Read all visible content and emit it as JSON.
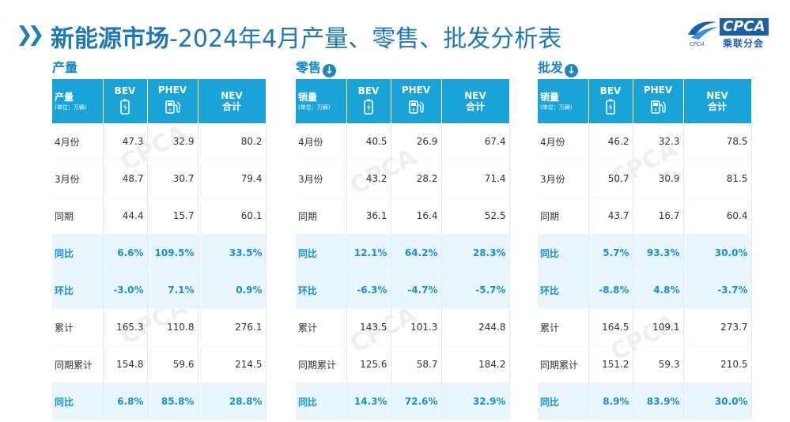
{
  "title": {
    "bold": "新能源市场",
    "rest": "-2024年4月产量、零售、批发分析表"
  },
  "logo": {
    "en": "CPCA",
    "cn": "乘联分会",
    "small": "CPCA"
  },
  "header_cols": {
    "bev": "BEV",
    "phev": "PHEV",
    "nev_line1": "NEV",
    "nev_line2": "合计"
  },
  "unit_note": "(单位：万辆)",
  "panels": [
    {
      "name": "产量",
      "col_label": "产量",
      "rows": [
        {
          "label": "4月份",
          "bev": "47.3",
          "phev": "32.9",
          "nev": "80.2"
        },
        {
          "label": "3月份",
          "bev": "48.7",
          "phev": "30.7",
          "nev": "79.4"
        },
        {
          "label": "同期",
          "bev": "44.4",
          "phev": "15.7",
          "nev": "60.1"
        },
        {
          "label": "同比",
          "bev": "6.6%",
          "phev": "109.5%",
          "nev": "33.5%"
        },
        {
          "label": "环比",
          "bev": "-3.0%",
          "phev": "7.1%",
          "nev": "0.9%"
        },
        {
          "label": "累计",
          "bev": "165.3",
          "phev": "110.8",
          "nev": "276.1"
        },
        {
          "label": "同期累计",
          "bev": "154.8",
          "phev": "59.6",
          "nev": "214.5"
        },
        {
          "label": "同比",
          "bev": "6.8%",
          "phev": "85.8%",
          "nev": "28.8%"
        }
      ]
    },
    {
      "name": "零售",
      "col_label": "销量",
      "rows": [
        {
          "label": "4月份",
          "bev": "40.5",
          "phev": "26.9",
          "nev": "67.4"
        },
        {
          "label": "3月份",
          "bev": "43.2",
          "phev": "28.2",
          "nev": "71.4"
        },
        {
          "label": "同期",
          "bev": "36.1",
          "phev": "16.4",
          "nev": "52.5"
        },
        {
          "label": "同比",
          "bev": "12.1%",
          "phev": "64.2%",
          "nev": "28.3%"
        },
        {
          "label": "环比",
          "bev": "-6.3%",
          "phev": "-4.7%",
          "nev": "-5.7%"
        },
        {
          "label": "累计",
          "bev": "143.5",
          "phev": "101.3",
          "nev": "244.8"
        },
        {
          "label": "同期累计",
          "bev": "125.6",
          "phev": "58.7",
          "nev": "184.2"
        },
        {
          "label": "同比",
          "bev": "14.3%",
          "phev": "72.6%",
          "nev": "32.9%"
        }
      ]
    },
    {
      "name": "批发",
      "col_label": "销量",
      "rows": [
        {
          "label": "4月份",
          "bev": "46.2",
          "phev": "32.3",
          "nev": "78.5"
        },
        {
          "label": "3月份",
          "bev": "50.7",
          "phev": "30.9",
          "nev": "81.5"
        },
        {
          "label": "同期",
          "bev": "43.7",
          "phev": "16.7",
          "nev": "60.4"
        },
        {
          "label": "同比",
          "bev": "5.7%",
          "phev": "93.3%",
          "nev": "30.0%"
        },
        {
          "label": "环比",
          "bev": "-8.8%",
          "phev": "4.8%",
          "nev": "-3.7%"
        },
        {
          "label": "累计",
          "bev": "164.5",
          "phev": "109.1",
          "nev": "273.7"
        },
        {
          "label": "同期累计",
          "bev": "151.2",
          "phev": "59.3",
          "nev": "210.5"
        },
        {
          "label": "同比",
          "bev": "8.9%",
          "phev": "83.9%",
          "nev": "30.0%"
        }
      ]
    }
  ],
  "colors": {
    "accent": "#1aa3d6",
    "title": "#1f78b4",
    "highlight_bg": "#e9f6fc",
    "highlight_text": "#1891c9"
  },
  "icons": {
    "bev": "battery-icon",
    "phev": "fuel-pump-icon",
    "download": "download-icon",
    "chevron": "double-chevron-icon"
  }
}
